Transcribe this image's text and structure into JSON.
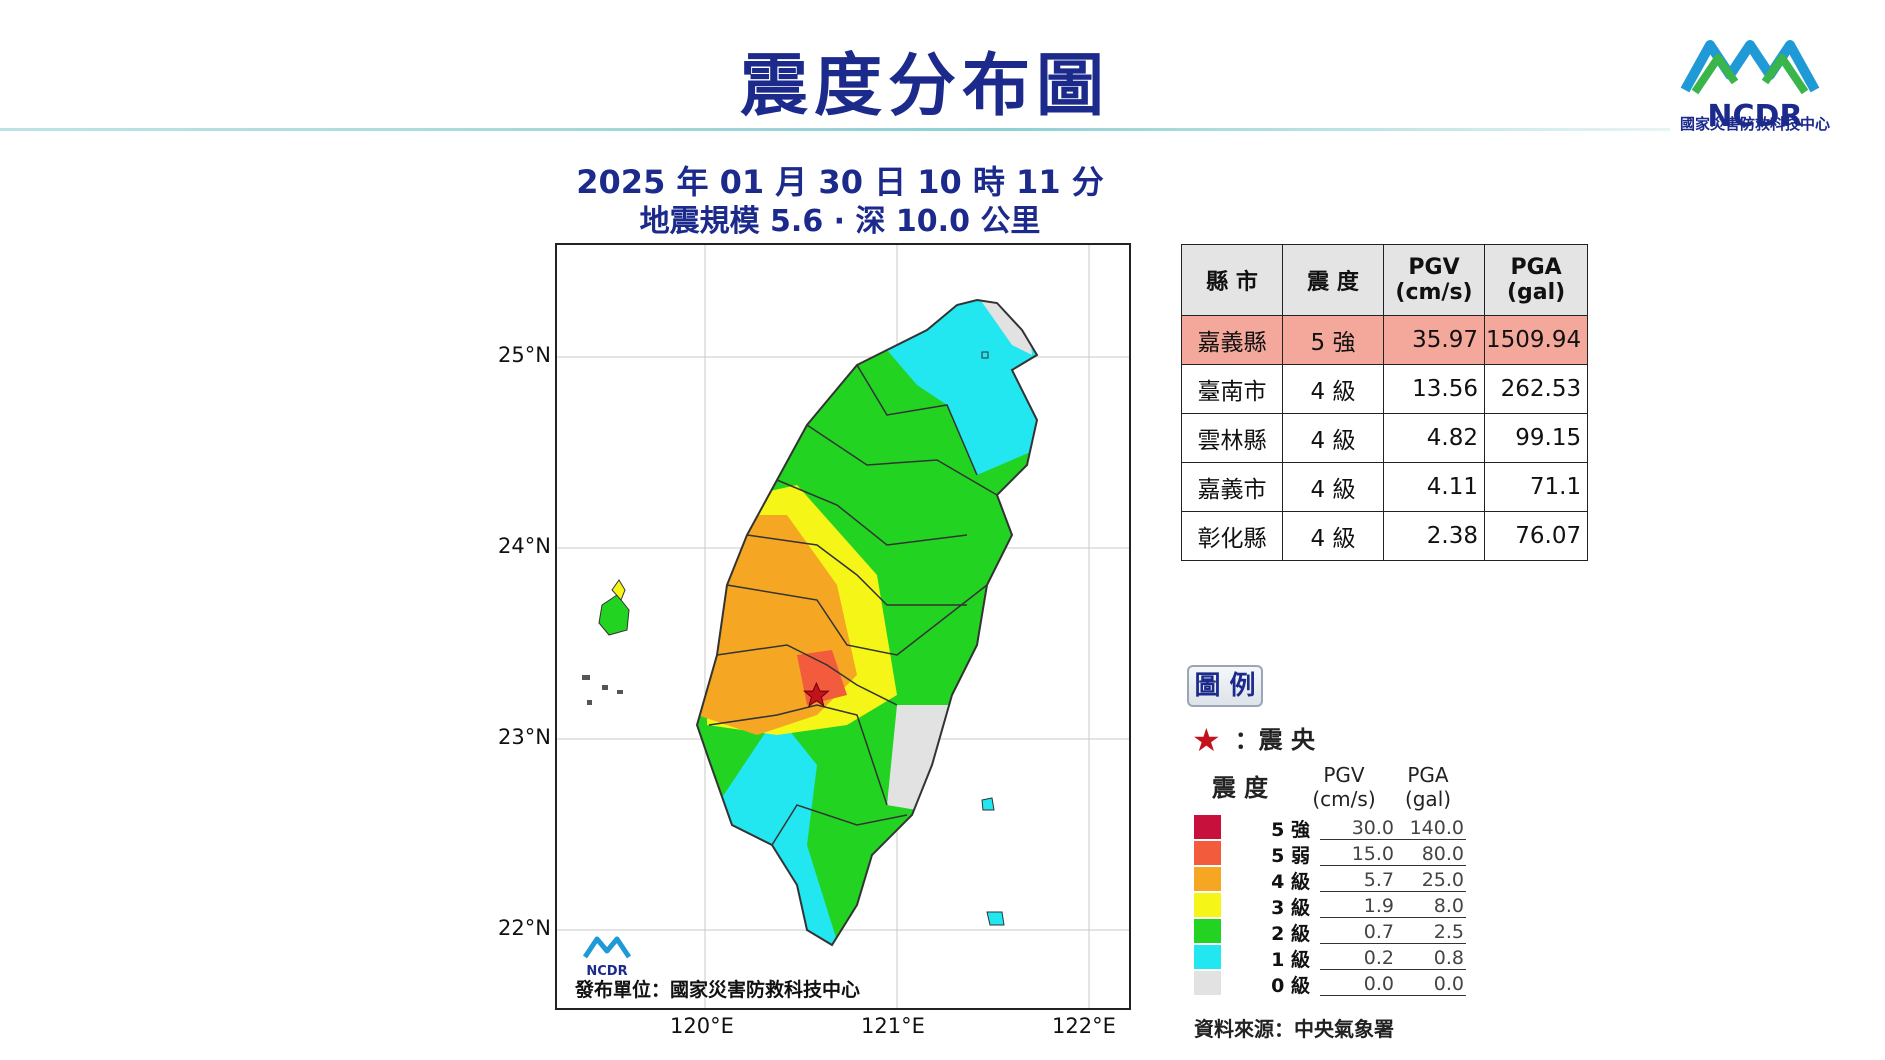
{
  "title": "震度分布圖",
  "org": {
    "logo_text": "NCDR",
    "name": "國家災害防救科技中心"
  },
  "event": {
    "datetime": "2025 年 01 月 30 日 10 時 11 分",
    "magnitude_depth": "地震規模 5.6 · 深 10.0 公里"
  },
  "map": {
    "lat_labels": [
      "25°N",
      "24°N",
      "23°N",
      "22°N"
    ],
    "lon_labels": [
      "120°E",
      "121°E",
      "122°E"
    ],
    "publisher": "發布單位：國家災害防救科技中心",
    "publisher_logo": "NCDR",
    "epicenter": {
      "lon": 120.58,
      "lat": 23.23
    }
  },
  "table": {
    "headers": {
      "county": "縣 市",
      "intensity": "震 度",
      "pgv": "PGV",
      "pgv_unit": "(cm/s)",
      "pga": "PGA",
      "pga_unit": "(gal)"
    },
    "rows": [
      {
        "county": "嘉義縣",
        "intensity": "5 強",
        "pgv": "35.97",
        "pga": "1509.94"
      },
      {
        "county": "臺南市",
        "intensity": "4 級",
        "pgv": "13.56",
        "pga": "262.53"
      },
      {
        "county": "雲林縣",
        "intensity": "4 級",
        "pgv": "4.82",
        "pga": "99.15"
      },
      {
        "county": "嘉義市",
        "intensity": "4 級",
        "pgv": "4.11",
        "pga": "71.1"
      },
      {
        "county": "彰化縣",
        "intensity": "4 級",
        "pgv": "2.38",
        "pga": "76.07"
      }
    ]
  },
  "legend": {
    "button": "圖 例",
    "epicenter_label": "：震 央",
    "col_intensity": "震 度",
    "col_pgv": "PGV",
    "col_pgv_unit": "(cm/s)",
    "col_pga": "PGA",
    "col_pga_unit": "(gal)",
    "levels": [
      {
        "label": "5 強",
        "color": "#c8103c",
        "pgv": "30.0",
        "pga": "140.0"
      },
      {
        "label": "5 弱",
        "color": "#f25c3c",
        "pgv": "15.0",
        "pga": "80.0"
      },
      {
        "label": "4 級",
        "color": "#f5a623",
        "pgv": "5.7",
        "pga": "25.0"
      },
      {
        "label": "3 級",
        "color": "#f5f518",
        "pgv": "1.9",
        "pga": "8.0"
      },
      {
        "label": "2 級",
        "color": "#22d322",
        "pgv": "0.7",
        "pga": "2.5"
      },
      {
        "label": "1 級",
        "color": "#22e6f0",
        "pgv": "0.2",
        "pga": "0.8"
      },
      {
        "label": "0 級",
        "color": "#e2e2e2",
        "pgv": "0.0",
        "pga": "0.0"
      }
    ],
    "source": "資料來源：中央氣象署"
  }
}
